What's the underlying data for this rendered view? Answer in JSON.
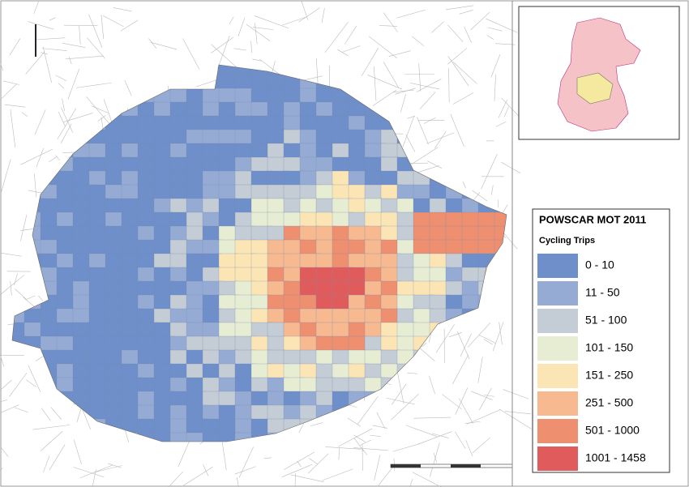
{
  "map": {
    "legend": {
      "title": "POWSCAR MOT 2011",
      "subtitle": "Cycling Trips",
      "classes": [
        {
          "label": "0 - 10",
          "color": "#6f8fca"
        },
        {
          "label": "11 - 50",
          "color": "#95abd3"
        },
        {
          "label": "51 - 100",
          "color": "#c4ccd5"
        },
        {
          "label": "101 - 150",
          "color": "#e7edd3"
        },
        {
          "label": "151 - 250",
          "color": "#fbe5b5"
        },
        {
          "label": "251 - 500",
          "color": "#f6b990"
        },
        {
          "label": "501 - 1000",
          "color": "#ee8f70"
        },
        {
          "label": "1001 - 1458",
          "color": "#df5b5c"
        }
      ]
    }
  }
}
